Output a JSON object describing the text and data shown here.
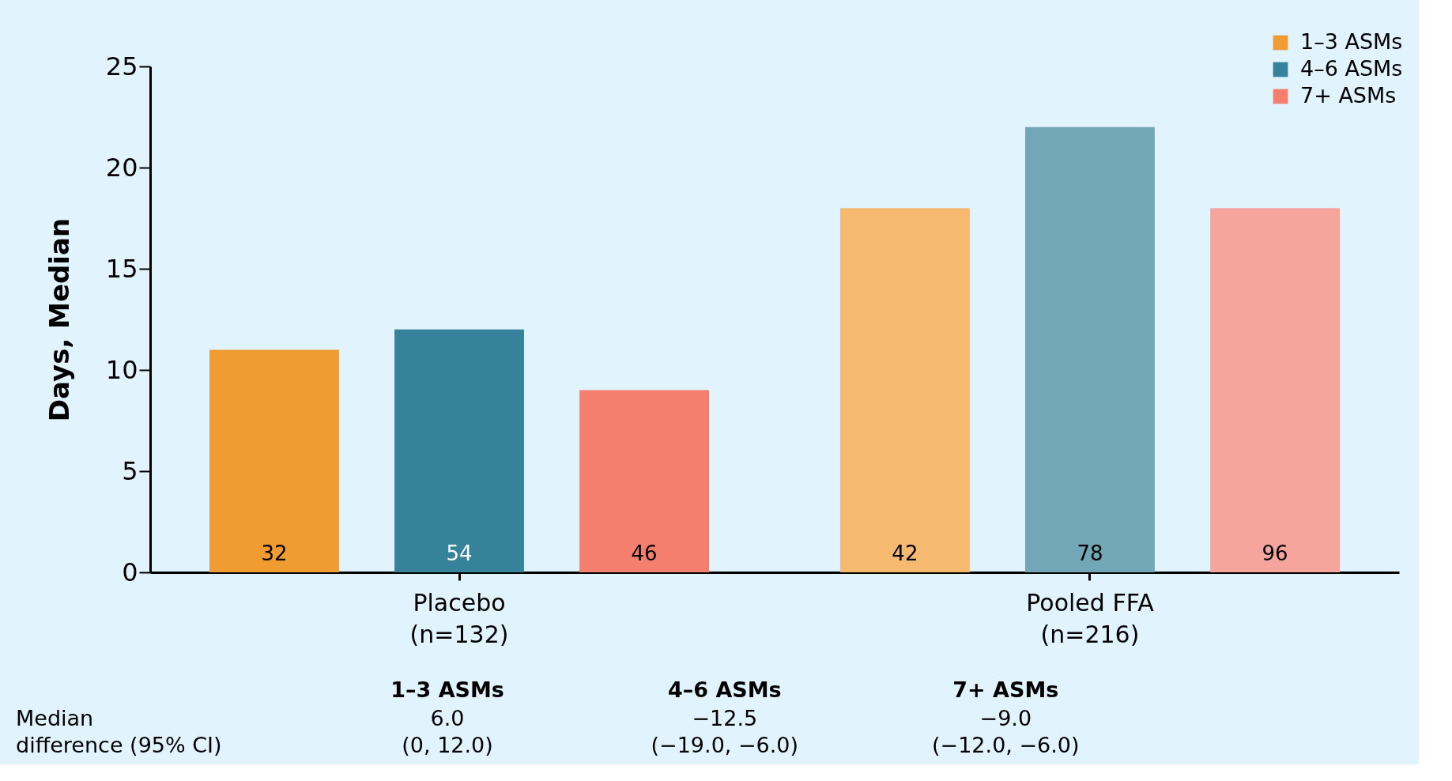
{
  "chart_data": {
    "type": "bar",
    "ylabel": "Days, Median",
    "categories": [
      "Placebo\n(n=132)",
      "Pooled FFA\n(n=216)"
    ],
    "series": [
      {
        "name": "1–3 ASMs",
        "color": "#f09c33",
        "colors": [
          "#f09c33",
          "#f5b96f"
        ],
        "values": [
          11,
          18
        ]
      },
      {
        "name": "4–6 ASMs",
        "color": "#36829b",
        "colors": [
          "#36829b",
          "#72a7b7"
        ],
        "values": [
          12,
          22
        ]
      },
      {
        "name": "7+ ASMs",
        "color": "#f47f6f",
        "colors": [
          "#f47f6f",
          "#f5a59b"
        ],
        "values": [
          9,
          18
        ]
      }
    ],
    "ylim": [
      0,
      25
    ],
    "yticks": [
      0,
      5,
      10,
      15,
      20,
      25
    ],
    "grid": false,
    "legend": "top right",
    "annotations": [
      "32",
      "42",
      "54",
      "78",
      "46",
      "96",
      "1–3 ASMs",
      "4–6 ASMs",
      "7+ ASMs",
      "Median",
      "6.0",
      "−12.5",
      "−9.0",
      "difference (95% CI)",
      "(0, 12.0)",
      "(−19.0, −6.0)",
      "(−12.0, −6.0)"
    ]
  }
}
